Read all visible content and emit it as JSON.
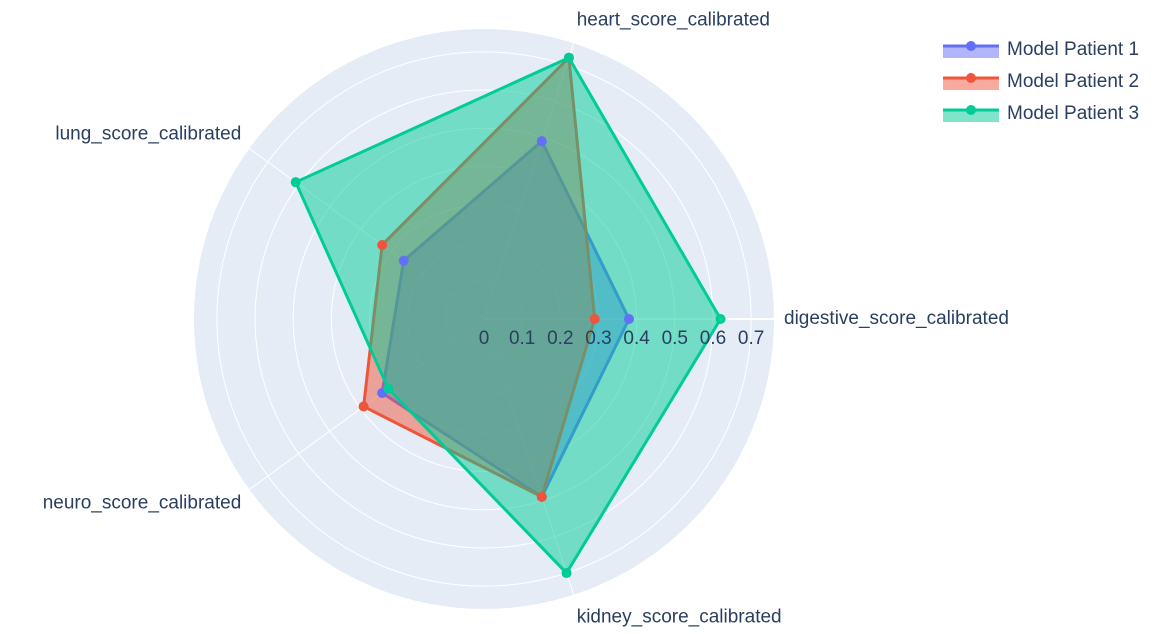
{
  "chart_data": {
    "type": "radar",
    "categories": [
      "digestive_score_calibrated",
      "heart_score_calibrated",
      "lung_score_calibrated",
      "neuro_score_calibrated",
      "kidney_score_calibrated"
    ],
    "series": [
      {
        "name": "Model Patient 1",
        "color": "#636efa",
        "values": [
          0.38,
          0.49,
          0.26,
          0.33,
          0.49
        ]
      },
      {
        "name": "Model Patient 2",
        "color": "#EF553B",
        "values": [
          0.29,
          0.72,
          0.33,
          0.39,
          0.49
        ]
      },
      {
        "name": "Model Patient 3",
        "color": "#00cc96",
        "values": [
          0.62,
          0.72,
          0.61,
          0.31,
          0.7
        ]
      }
    ],
    "rlim": [
      0,
      0.76
    ],
    "rticks": [
      0,
      0.1,
      0.2,
      0.3,
      0.4,
      0.5,
      0.6,
      0.7
    ],
    "grid": true
  }
}
